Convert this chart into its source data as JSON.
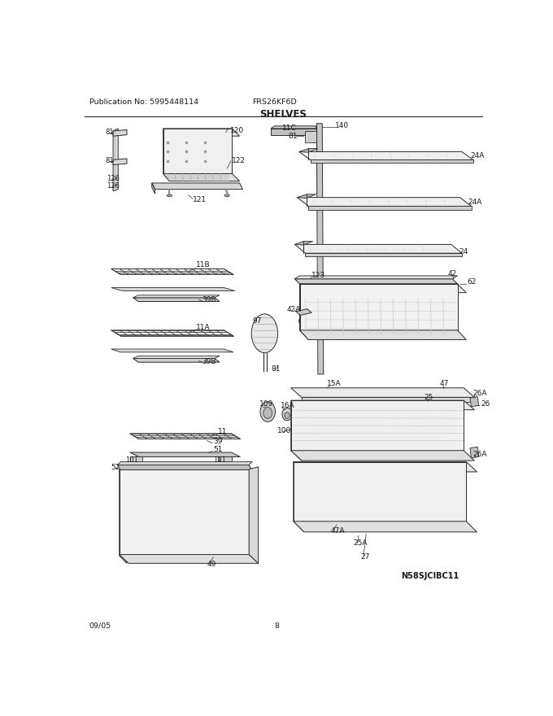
{
  "title": "SHELVES",
  "pub_no": "Publication No: 5995448114",
  "model": "FRS26KF6D",
  "date": "09/05",
  "page": "8",
  "watermark": "N58SJCIBC11",
  "bg_color": "#ffffff",
  "line_color": "#2a2a2a",
  "text_color": "#1a1a1a",
  "fig_width": 6.8,
  "fig_height": 8.8,
  "dpi": 100
}
